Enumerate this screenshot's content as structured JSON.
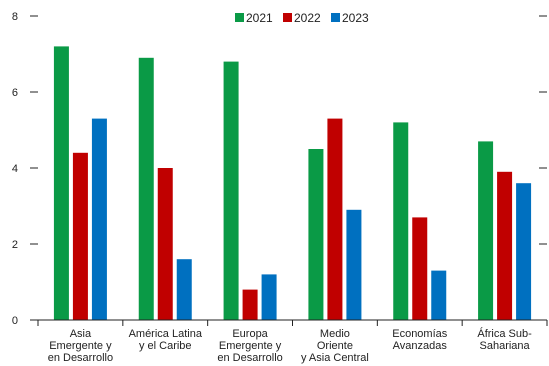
{
  "chart_data": {
    "type": "bar",
    "categories": [
      [
        "Asia",
        "Emergente y",
        "en Desarrollo"
      ],
      [
        "América Latina",
        "y el Caribe"
      ],
      [
        "Europa",
        "Emergente y",
        "en Desarrollo"
      ],
      [
        "Medio",
        "Oriente",
        "y Asia Central"
      ],
      [
        "Economías",
        "Avanzadas"
      ],
      [
        "África Sub-",
        "Sahariana"
      ]
    ],
    "series": [
      {
        "name": "2021",
        "color": "#0a9a46",
        "values": [
          7.2,
          6.9,
          6.8,
          4.5,
          5.2,
          4.7
        ]
      },
      {
        "name": "2022",
        "color": "#c00000",
        "values": [
          4.4,
          4.0,
          0.8,
          5.3,
          2.7,
          3.9
        ]
      },
      {
        "name": "2023",
        "color": "#0070c0",
        "values": [
          5.3,
          1.6,
          1.2,
          2.9,
          1.3,
          3.6
        ]
      }
    ],
    "ylim": [
      0,
      8
    ],
    "yticks": [
      "0",
      "2",
      "4",
      "6",
      "8"
    ],
    "legend_position": "top-center",
    "grid": false
  }
}
